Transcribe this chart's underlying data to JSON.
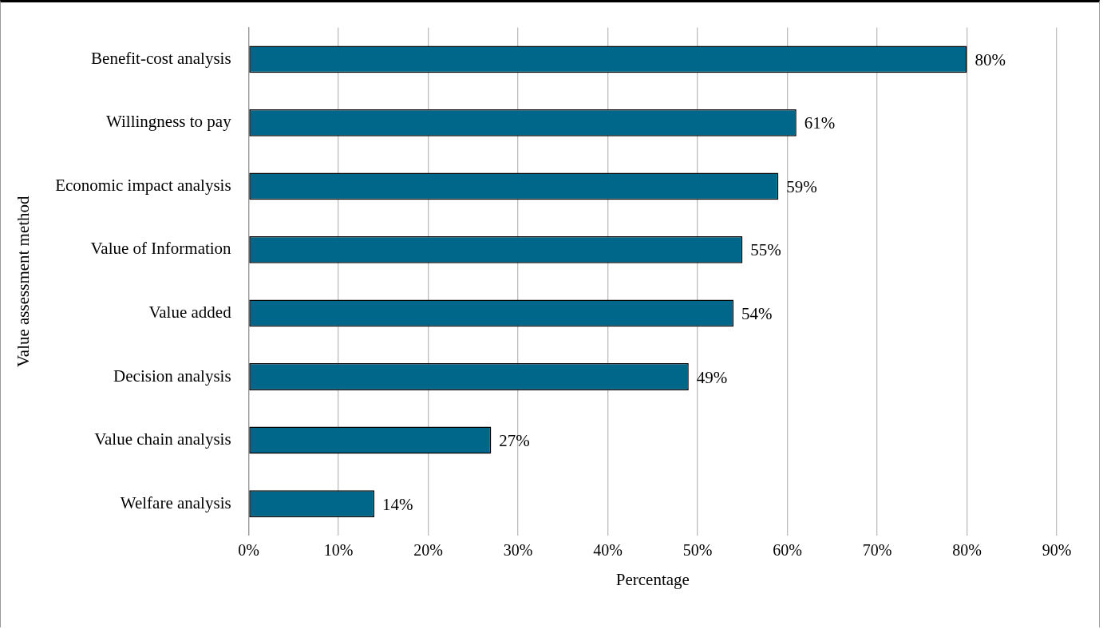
{
  "chart_data": {
    "type": "bar",
    "orientation": "horizontal",
    "xlabel": "Percentage",
    "ylabel": "Value assessment method",
    "categories": [
      "Benefit-cost analysis",
      "Willingness to pay",
      "Economic impact analysis",
      "Value of Information",
      "Value added",
      "Decision analysis",
      "Value chain analysis",
      "Welfare analysis"
    ],
    "values": [
      80,
      61,
      59,
      55,
      54,
      49,
      27,
      14
    ],
    "value_labels": [
      "80%",
      "61%",
      "59%",
      "55%",
      "54%",
      "49%",
      "27%",
      "14%"
    ],
    "color": "#00678a",
    "xlim": [
      0,
      90
    ],
    "xticks": [
      {
        "value": 0,
        "label": "0%"
      },
      {
        "value": 10,
        "label": "10%"
      },
      {
        "value": 20,
        "label": "20%"
      },
      {
        "value": 30,
        "label": "30%"
      },
      {
        "value": 40,
        "label": "40%"
      },
      {
        "value": 50,
        "label": "50%"
      },
      {
        "value": 60,
        "label": "60%"
      },
      {
        "value": 70,
        "label": "70%"
      },
      {
        "value": 80,
        "label": "80%"
      },
      {
        "value": 90,
        "label": "90%"
      }
    ],
    "grid": "x",
    "legend": false
  }
}
